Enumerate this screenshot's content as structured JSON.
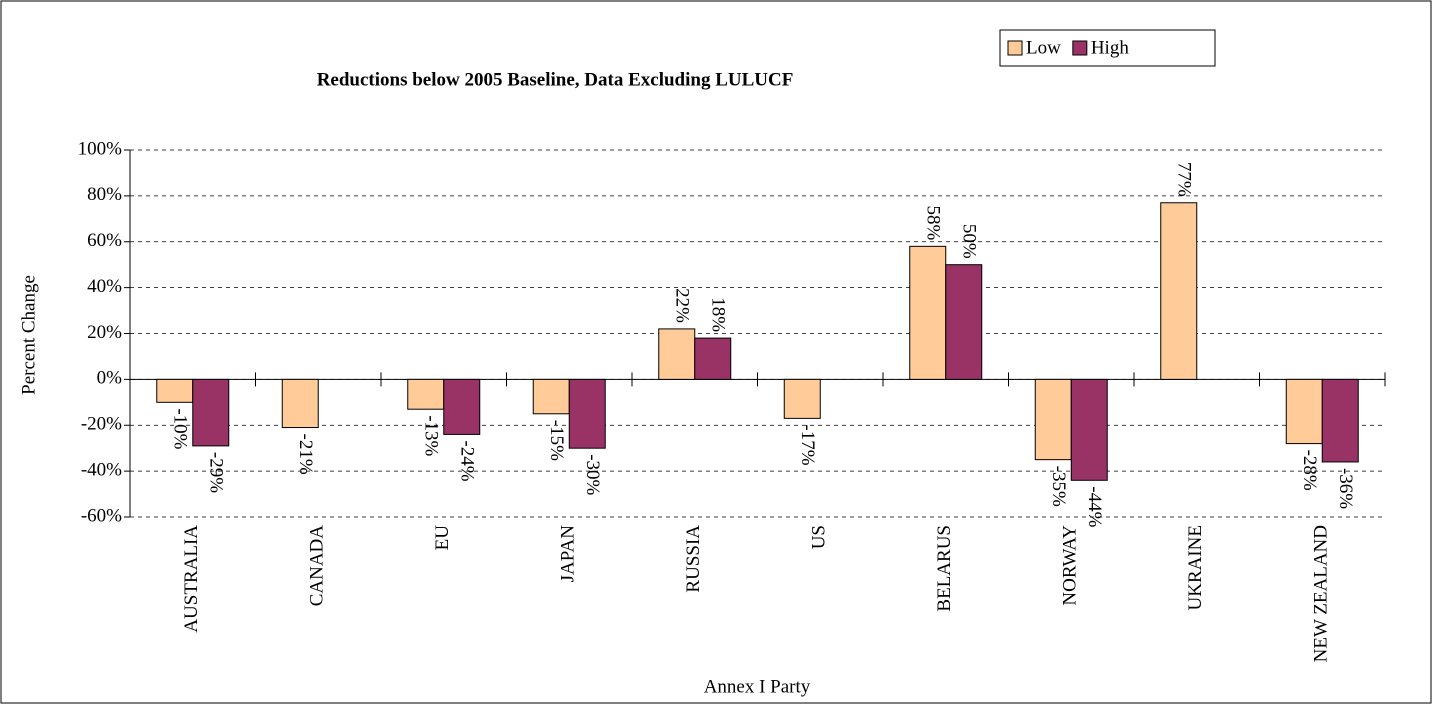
{
  "chart_data": {
    "type": "bar",
    "title": "Reductions below 2005 Baseline, Data Excluding LULUCF",
    "x_label": "Annex I Party",
    "y_label": "Percent Change",
    "categories": [
      "AUSTRALIA",
      "CANADA",
      "EU",
      "JAPAN",
      "RUSSIA",
      "US",
      "BELARUS",
      "NORWAY",
      "UKRAINE",
      "NEW ZEALAND"
    ],
    "series": [
      {
        "name": "Low",
        "color": "#ffcc99",
        "values": [
          -10,
          -21,
          -13,
          -15,
          22,
          -17,
          58,
          -35,
          77,
          -28
        ],
        "value_labels": [
          "-10%",
          "-21%",
          "-13%",
          "-15%",
          "22%",
          "-17%",
          "58%",
          "-35%",
          "77%",
          "-28%"
        ]
      },
      {
        "name": "High",
        "color": "#993366",
        "values": [
          -29,
          null,
          -24,
          -30,
          18,
          null,
          50,
          -44,
          null,
          -36
        ],
        "value_labels": [
          "-29%",
          null,
          "-24%",
          "-30%",
          "18%",
          null,
          "50%",
          "-44%",
          null,
          "-36%"
        ]
      }
    ],
    "ylim": [
      -60,
      100
    ],
    "yticks": [
      {
        "value": -60,
        "label": "-60%"
      },
      {
        "value": -40,
        "label": "-40%"
      },
      {
        "value": -20,
        "label": "-20%"
      },
      {
        "value": 0,
        "label": "0%"
      },
      {
        "value": 20,
        "label": "20%"
      },
      {
        "value": 40,
        "label": "40%"
      },
      {
        "value": 60,
        "label": "60%"
      },
      {
        "value": 80,
        "label": "80%"
      },
      {
        "value": 100,
        "label": "100%"
      }
    ],
    "grid": true,
    "legend": "top-right"
  }
}
